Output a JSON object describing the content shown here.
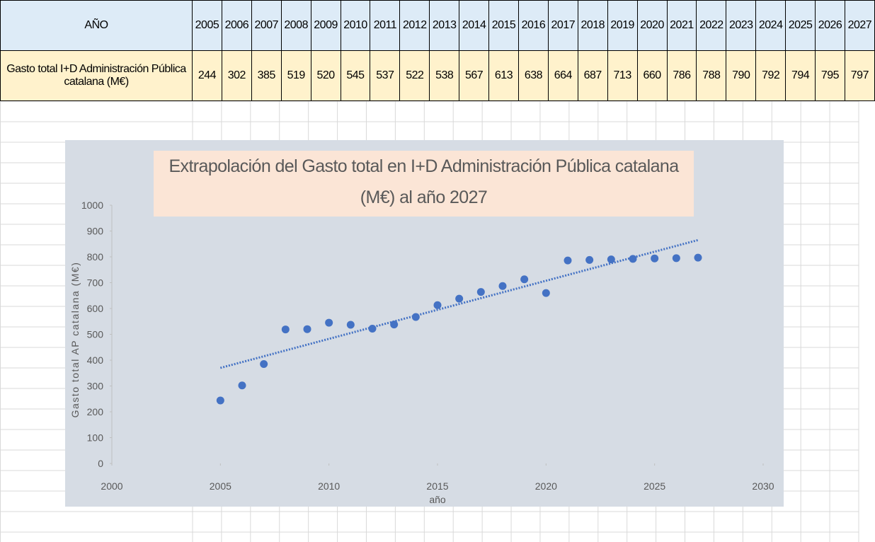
{
  "table": {
    "header": {
      "label": "AÑO",
      "years": [
        "2005",
        "2006",
        "2007",
        "2008",
        "2009",
        "2010",
        "2011",
        "2012",
        "2013",
        "2014",
        "2015",
        "2016",
        "2017",
        "2018",
        "2019",
        "2020",
        "2021",
        "2022",
        "2023",
        "2024",
        "2025",
        "2026",
        "2027"
      ]
    },
    "row": {
      "label": "Gasto total I+D Administración Pública catalana (M€)",
      "values": [
        "244",
        "302",
        "385",
        "519",
        "520",
        "545",
        "537",
        "522",
        "538",
        "567",
        "613",
        "638",
        "664",
        "687",
        "713",
        "660",
        "786",
        "788",
        "790",
        "792",
        "794",
        "795",
        "797"
      ]
    }
  },
  "chart_data": {
    "type": "scatter",
    "title": "Extrapolación del Gasto total en I+D Administración Pública catalana (M€) al año 2027",
    "x_label": "año",
    "y_label": "Gasto total AP catalana (M€)",
    "x": [
      2005,
      2006,
      2007,
      2008,
      2009,
      2010,
      2011,
      2012,
      2013,
      2014,
      2015,
      2016,
      2017,
      2018,
      2019,
      2020,
      2021,
      2022,
      2023,
      2024,
      2025,
      2026,
      2027
    ],
    "values": [
      244,
      302,
      385,
      519,
      520,
      545,
      537,
      522,
      538,
      567,
      613,
      638,
      664,
      687,
      713,
      660,
      786,
      788,
      790,
      792,
      794,
      795,
      797
    ],
    "color": "#4472c4",
    "trendline": {
      "x": [
        2005,
        2027
      ],
      "values": [
        370,
        865
      ],
      "color": "#4472c4"
    },
    "xlim": [
      2000,
      2030
    ],
    "xticks": [
      2000,
      2005,
      2010,
      2015,
      2020,
      2025,
      2030
    ],
    "ylim": [
      0,
      1000
    ],
    "yticks": [
      0,
      100,
      200,
      300,
      400,
      500,
      600,
      700,
      800,
      900,
      1000
    ],
    "grid": false
  }
}
